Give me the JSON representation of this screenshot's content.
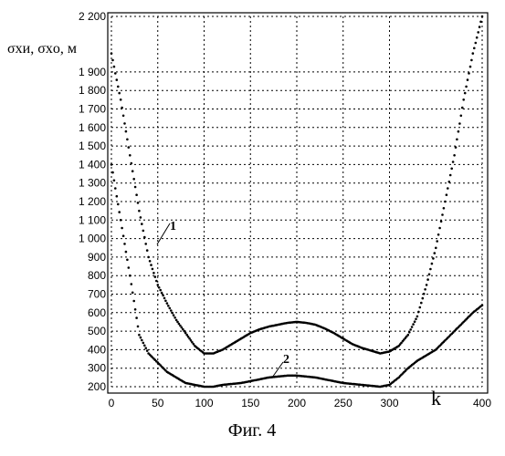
{
  "chart_data": {
    "type": "scatter",
    "ylabel": "σxи, σxо, м",
    "xlabel": "k",
    "caption": "Фиг. 4",
    "xlim": [
      0,
      400
    ],
    "ylim": [
      200,
      2200
    ],
    "x_ticks": [
      "0",
      "50",
      "100",
      "150",
      "200",
      "250",
      "300",
      "400"
    ],
    "y_ticks": [
      "2 200",
      "1 900",
      "1 800",
      "1 700",
      "1 600",
      "1 500",
      "1 400",
      "1 300",
      "1 200",
      "1 100",
      "1 000",
      "900",
      "800",
      "700",
      "600",
      "500",
      "400",
      "300",
      "200"
    ],
    "y_tick_values": [
      2200,
      1900,
      1800,
      1700,
      1600,
      1500,
      1400,
      1300,
      1200,
      1100,
      1000,
      900,
      800,
      700,
      600,
      500,
      400,
      300,
      200
    ],
    "grid": true,
    "series": [
      {
        "name": "1",
        "x": [
          0,
          10,
          20,
          30,
          40,
          50,
          60,
          70,
          80,
          90,
          100,
          110,
          120,
          130,
          140,
          150,
          160,
          170,
          180,
          190,
          200,
          210,
          220,
          230,
          240,
          250,
          260,
          270,
          280,
          290,
          300,
          310,
          320,
          330,
          340,
          350,
          360,
          370,
          380,
          390,
          400
        ],
        "values": [
          2000,
          1750,
          1450,
          1150,
          900,
          750,
          650,
          560,
          490,
          420,
          380,
          380,
          400,
          430,
          460,
          490,
          510,
          525,
          535,
          545,
          550,
          545,
          535,
          515,
          490,
          460,
          430,
          410,
          395,
          380,
          390,
          420,
          480,
          580,
          750,
          950,
          1200,
          1450,
          1750,
          2000,
          2200
        ]
      },
      {
        "name": "2",
        "x": [
          0,
          10,
          20,
          30,
          40,
          50,
          60,
          70,
          80,
          90,
          100,
          110,
          120,
          130,
          140,
          150,
          160,
          170,
          180,
          190,
          200,
          210,
          220,
          230,
          240,
          250,
          260,
          270,
          280,
          290,
          300,
          310,
          320,
          330,
          340,
          350,
          360,
          370,
          380,
          390,
          400
        ],
        "values": [
          1400,
          1100,
          800,
          480,
          380,
          330,
          280,
          250,
          220,
          210,
          200,
          200,
          210,
          215,
          220,
          230,
          240,
          250,
          255,
          260,
          260,
          255,
          250,
          240,
          230,
          220,
          215,
          210,
          205,
          200,
          210,
          250,
          300,
          340,
          370,
          400,
          450,
          500,
          550,
          600,
          640
        ]
      }
    ]
  }
}
